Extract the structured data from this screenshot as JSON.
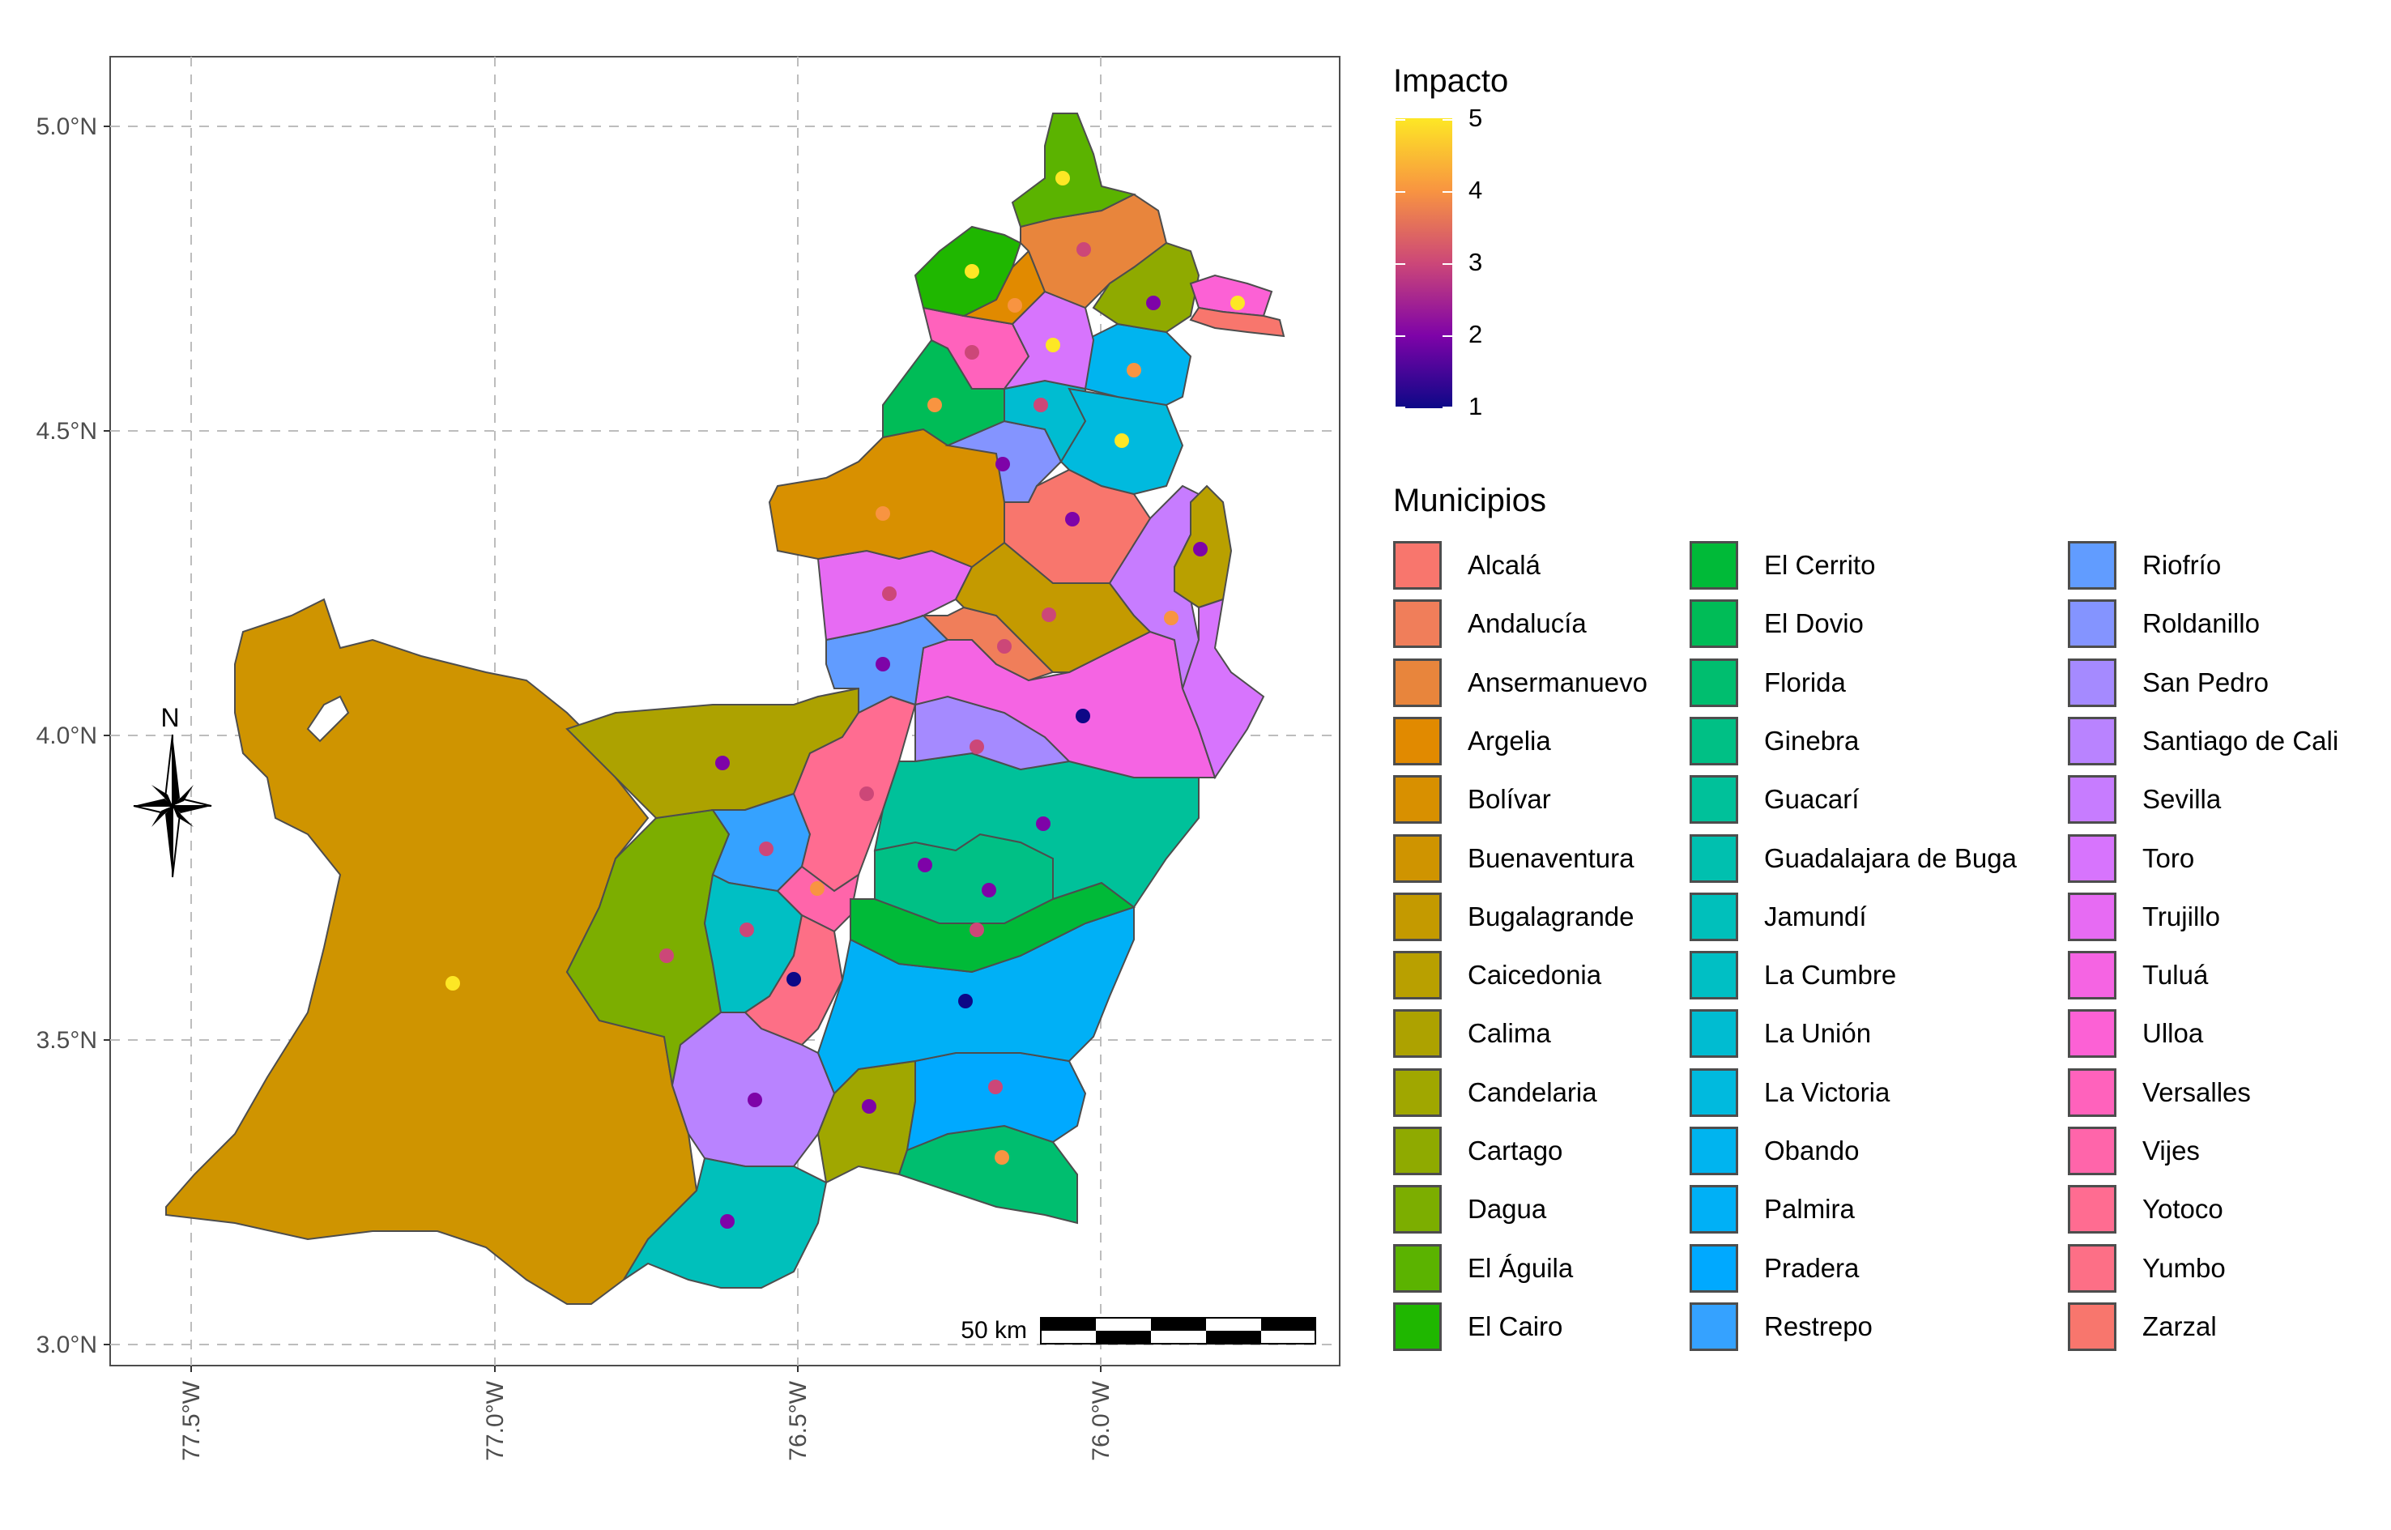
{
  "axes": {
    "x_ticks": [
      "77.5°W",
      "77.0°W",
      "76.5°W",
      "76.0°W"
    ],
    "y_ticks": [
      "5.0°N",
      "4.5°N",
      "4.0°N",
      "3.5°N",
      "3.0°N"
    ]
  },
  "north_arrow": {
    "label": "N"
  },
  "scale_bar": {
    "label": "50 km"
  },
  "colorbar": {
    "title": "Impacto",
    "labels": [
      "5",
      "4",
      "3",
      "2",
      "1"
    ],
    "colors": [
      "#fde725",
      "#f89441",
      "#cc4778",
      "#7e03a8",
      "#0d0887"
    ]
  },
  "legend": {
    "title": "Municipios",
    "items": [
      {
        "name": "Alcalá",
        "color": "#F8766D"
      },
      {
        "name": "Andalucía",
        "color": "#F07E5A"
      },
      {
        "name": "Ansermanuevo",
        "color": "#E8853C"
      },
      {
        "name": "Argelia",
        "color": "#E18A00"
      },
      {
        "name": "Bolívar",
        "color": "#D89000"
      },
      {
        "name": "Buenaventura",
        "color": "#CF9400"
      },
      {
        "name": "Bugalagrande",
        "color": "#C49A00"
      },
      {
        "name": "Caicedonia",
        "color": "#B9A000"
      },
      {
        "name": "Calima",
        "color": "#ADA200"
      },
      {
        "name": "Candelaria",
        "color": "#A0A700"
      },
      {
        "name": "Cartago",
        "color": "#8FAA00"
      },
      {
        "name": "Dagua",
        "color": "#7CAE00"
      },
      {
        "name": "El Águila",
        "color": "#5BB300"
      },
      {
        "name": "El Cairo",
        "color": "#1FB700"
      },
      {
        "name": "El Cerrito",
        "color": "#00BA38"
      },
      {
        "name": "El Dovio",
        "color": "#00BC57"
      },
      {
        "name": "Florida",
        "color": "#00BE6F"
      },
      {
        "name": "Ginebra",
        "color": "#00C085"
      },
      {
        "name": "Guacarí",
        "color": "#00C19A"
      },
      {
        "name": "Guadalajara de Buga",
        "color": "#00C0AF"
      },
      {
        "name": "Jamundí",
        "color": "#00C0BB"
      },
      {
        "name": "La Cumbre",
        "color": "#00BFC4"
      },
      {
        "name": "La Unión",
        "color": "#00BCD1"
      },
      {
        "name": "La Victoria",
        "color": "#00BADE"
      },
      {
        "name": "Obando",
        "color": "#00B4EF"
      },
      {
        "name": "Palmira",
        "color": "#00B0F6"
      },
      {
        "name": "Pradera",
        "color": "#00A9FF"
      },
      {
        "name": "Restrepo",
        "color": "#35A2FF"
      },
      {
        "name": "Riofrío",
        "color": "#619CFF"
      },
      {
        "name": "Roldanillo",
        "color": "#8494FF"
      },
      {
        "name": "San Pedro",
        "color": "#A58AFF"
      },
      {
        "name": "Santiago de Cali",
        "color": "#B983FF"
      },
      {
        "name": "Sevilla",
        "color": "#C77CFF"
      },
      {
        "name": "Toro",
        "color": "#D774FD"
      },
      {
        "name": "Trujillo",
        "color": "#E76BF3"
      },
      {
        "name": "Tuluá",
        "color": "#F564E3"
      },
      {
        "name": "Ulloa",
        "color": "#FC61D5"
      },
      {
        "name": "Versalles",
        "color": "#FF62BC"
      },
      {
        "name": "Vijes",
        "color": "#FF65AA"
      },
      {
        "name": "Yotoco",
        "color": "#FF6C91"
      },
      {
        "name": "Yumbo",
        "color": "#FD6F86"
      },
      {
        "name": "Zarzal",
        "color": "#F8766D"
      }
    ]
  }
}
